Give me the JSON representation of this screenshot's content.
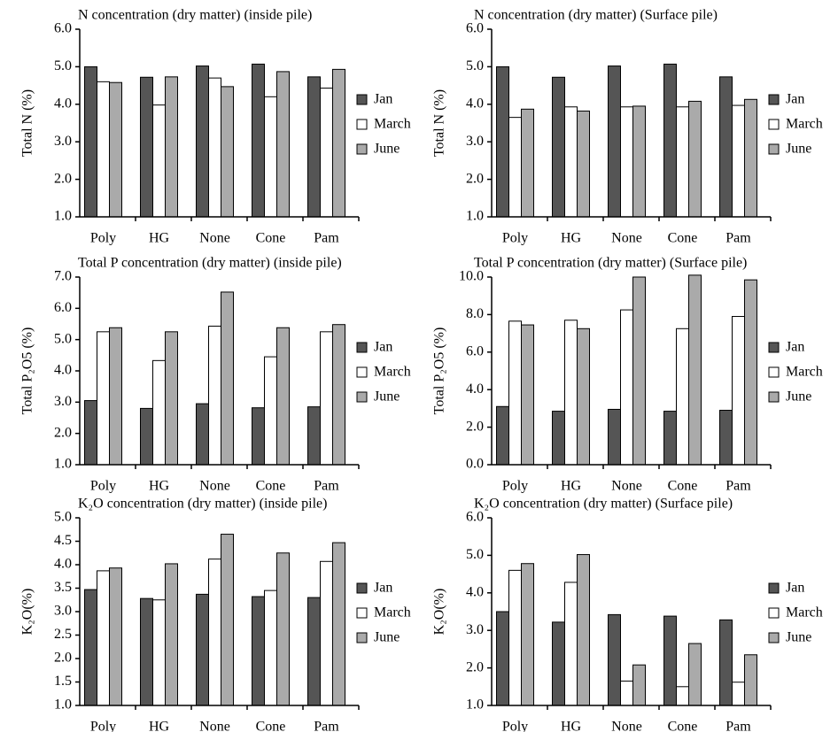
{
  "chart_data": [
    {
      "type": "bar",
      "title": "N concentration (dry matter) (inside pile)",
      "ylabel": "Total N (%)",
      "categories": [
        "Poly",
        "HG",
        "None",
        "Cone",
        "Pam"
      ],
      "series": [
        {
          "name": "Jan",
          "color": "#555555",
          "values": [
            5.0,
            4.72,
            5.02,
            5.07,
            4.73
          ]
        },
        {
          "name": "March",
          "color": "#ffffff",
          "values": [
            4.6,
            3.98,
            4.7,
            4.2,
            4.43
          ]
        },
        {
          "name": "June",
          "color": "#aaaaaa",
          "values": [
            4.58,
            4.73,
            4.47,
            4.87,
            4.93
          ]
        }
      ],
      "ylim": [
        1,
        6
      ],
      "yticks": [
        {
          "value": 1,
          "label": "1.0"
        },
        {
          "value": 2,
          "label": "2.0"
        },
        {
          "value": 3,
          "label": "3.0"
        },
        {
          "value": 4,
          "label": "4.0"
        },
        {
          "value": 5,
          "label": "5.0"
        },
        {
          "value": 6,
          "label": "6.0"
        }
      ]
    },
    {
      "type": "bar",
      "title": "N concentration (dry matter) (Surface pile)",
      "ylabel": "Total N (%)",
      "categories": [
        "Poly",
        "HG",
        "None",
        "Cone",
        "Pam"
      ],
      "series": [
        {
          "name": "Jan",
          "color": "#555555",
          "values": [
            5.0,
            4.72,
            5.02,
            5.07,
            4.73
          ]
        },
        {
          "name": "March",
          "color": "#ffffff",
          "values": [
            3.65,
            3.93,
            3.93,
            3.93,
            3.97
          ]
        },
        {
          "name": "June",
          "color": "#aaaaaa",
          "values": [
            3.87,
            3.82,
            3.95,
            4.08,
            4.13
          ]
        }
      ],
      "ylim": [
        1,
        6
      ],
      "yticks": [
        {
          "value": 1,
          "label": "1.0"
        },
        {
          "value": 2,
          "label": "2.0"
        },
        {
          "value": 3,
          "label": "3.0"
        },
        {
          "value": 4,
          "label": "4.0"
        },
        {
          "value": 5,
          "label": "5.0"
        },
        {
          "value": 6,
          "label": "6.0"
        }
      ]
    },
    {
      "type": "bar",
      "title": "Total P concentration (dry matter) (inside pile)",
      "ylabel": "Total P₂O5 (%)",
      "categories": [
        "Poly",
        "HG",
        "None",
        "Cone",
        "Pam"
      ],
      "series": [
        {
          "name": "Jan",
          "color": "#555555",
          "values": [
            3.05,
            2.8,
            2.95,
            2.82,
            2.85
          ]
        },
        {
          "name": "March",
          "color": "#ffffff",
          "values": [
            5.25,
            4.33,
            5.43,
            4.45,
            5.25
          ]
        },
        {
          "name": "June",
          "color": "#aaaaaa",
          "values": [
            5.38,
            5.25,
            6.52,
            5.38,
            5.48
          ]
        }
      ],
      "ylim": [
        1,
        7
      ],
      "yticks": [
        {
          "value": 1,
          "label": "1.0"
        },
        {
          "value": 2,
          "label": "2.0"
        },
        {
          "value": 3,
          "label": "3.0"
        },
        {
          "value": 4,
          "label": "4.0"
        },
        {
          "value": 5,
          "label": "5.0"
        },
        {
          "value": 6,
          "label": "6.0"
        },
        {
          "value": 7,
          "label": "7.0"
        }
      ]
    },
    {
      "type": "bar",
      "title": "Total P  concentration (dry matter) (Surface pile)",
      "ylabel": "Total P₂O5 (%)",
      "categories": [
        "Poly",
        "HG",
        "None",
        "Cone",
        "Pam"
      ],
      "series": [
        {
          "name": "Jan",
          "color": "#555555",
          "values": [
            3.1,
            2.85,
            2.95,
            2.85,
            2.9
          ]
        },
        {
          "name": "March",
          "color": "#ffffff",
          "values": [
            7.65,
            7.7,
            8.25,
            7.25,
            7.9
          ]
        },
        {
          "name": "June",
          "color": "#aaaaaa",
          "values": [
            7.45,
            7.25,
            10.0,
            10.1,
            9.85
          ]
        }
      ],
      "ylim": [
        0,
        10
      ],
      "yticks": [
        {
          "value": 0,
          "label": "0.0"
        },
        {
          "value": 2,
          "label": "2.0"
        },
        {
          "value": 4,
          "label": "4.0"
        },
        {
          "value": 6,
          "label": "6.0"
        },
        {
          "value": 8,
          "label": "8.0"
        },
        {
          "value": 10,
          "label": "10.0"
        }
      ]
    },
    {
      "type": "bar",
      "title": "K₂O concentration (dry matter) (inside pile)",
      "ylabel": "K₂O(%)",
      "categories": [
        "Poly",
        "HG",
        "None",
        "Cone",
        "Pam"
      ],
      "series": [
        {
          "name": "Jan",
          "color": "#555555",
          "values": [
            3.47,
            3.28,
            3.37,
            3.32,
            3.3
          ]
        },
        {
          "name": "March",
          "color": "#ffffff",
          "values": [
            3.87,
            3.25,
            4.12,
            3.45,
            4.07
          ]
        },
        {
          "name": "June",
          "color": "#aaaaaa",
          "values": [
            3.93,
            4.02,
            4.65,
            4.25,
            4.47
          ]
        }
      ],
      "ylim": [
        1,
        5
      ],
      "yticks": [
        {
          "value": 1,
          "label": "1.0"
        },
        1.5,
        {
          "value": 2,
          "label": "2.0"
        },
        2.5,
        {
          "value": 3,
          "label": "3.0"
        },
        3.5,
        {
          "value": 4,
          "label": "4.0"
        },
        4.5,
        {
          "value": 5,
          "label": "5.0"
        }
      ]
    },
    {
      "type": "bar",
      "title": "K₂O concentration (dry matter) (Surface pile)",
      "ylabel": "K₂O(%)",
      "categories": [
        "Poly",
        "HG",
        "None",
        "Cone",
        "Pam"
      ],
      "series": [
        {
          "name": "Jan",
          "color": "#555555",
          "values": [
            3.5,
            3.22,
            3.42,
            3.38,
            3.28
          ]
        },
        {
          "name": "March",
          "color": "#ffffff",
          "values": [
            4.6,
            4.28,
            1.65,
            1.5,
            1.62
          ]
        },
        {
          "name": "June",
          "color": "#aaaaaa",
          "values": [
            4.78,
            5.02,
            2.08,
            2.65,
            2.35
          ]
        }
      ],
      "ylim": [
        1,
        6
      ],
      "yticks": [
        {
          "value": 1,
          "label": "1.0"
        },
        {
          "value": 2,
          "label": "2.0"
        },
        {
          "value": 3,
          "label": "3.0"
        },
        {
          "value": 4,
          "label": "4.0"
        },
        {
          "value": 5,
          "label": "5.0"
        },
        {
          "value": 6,
          "label": "6.0"
        }
      ]
    }
  ]
}
